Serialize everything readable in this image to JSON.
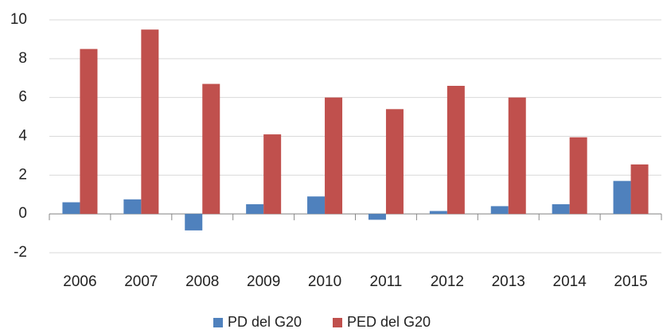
{
  "chart_data": {
    "type": "bar",
    "categories": [
      "2006",
      "2007",
      "2008",
      "2009",
      "2010",
      "2011",
      "2012",
      "2013",
      "2014",
      "2015"
    ],
    "series": [
      {
        "name": "PD del G20",
        "color": "#4f81bd",
        "values": [
          0.6,
          0.75,
          -0.85,
          0.5,
          0.9,
          -0.3,
          0.15,
          0.4,
          0.5,
          1.7
        ]
      },
      {
        "name": "PED del G20",
        "color": "#c0504d",
        "values": [
          8.5,
          9.5,
          6.7,
          4.1,
          6.0,
          5.4,
          6.6,
          6.0,
          3.95,
          2.55
        ]
      }
    ],
    "ylim": [
      -2,
      10
    ],
    "yticks": [
      -2,
      0,
      2,
      4,
      6,
      8,
      10
    ],
    "grid": true,
    "legend": "bottom"
  }
}
